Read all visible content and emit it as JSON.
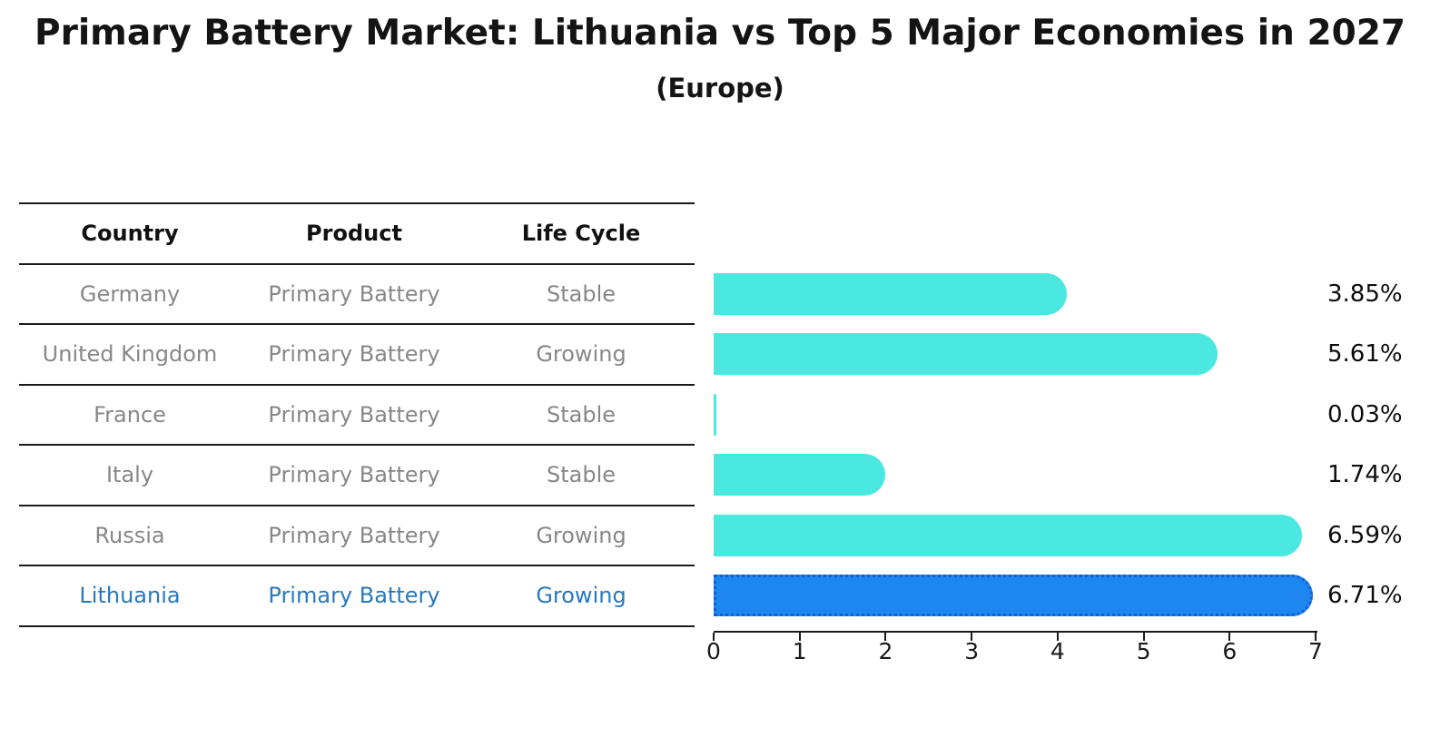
{
  "header": {
    "title": "Primary Battery Market: Lithuania vs Top 5 Major Economies in 2027",
    "subtitle": "(Europe)"
  },
  "table": {
    "columns": [
      "Country",
      "Product",
      "Life Cycle"
    ],
    "rows": [
      {
        "country": "Germany",
        "product": "Primary Battery",
        "life_cycle": "Stable",
        "highlighted": false
      },
      {
        "country": "United Kingdom",
        "product": "Primary Battery",
        "life_cycle": "Growing",
        "highlighted": false
      },
      {
        "country": "France",
        "product": "Primary Battery",
        "life_cycle": "Stable",
        "highlighted": false
      },
      {
        "country": "Italy",
        "product": "Primary Battery",
        "life_cycle": "Stable",
        "highlighted": false
      },
      {
        "country": "Russia",
        "product": "Primary Battery",
        "life_cycle": "Growing",
        "highlighted": false
      },
      {
        "country": "Lithuania",
        "product": "Primary Battery",
        "life_cycle": "Growing",
        "highlighted": true
      }
    ]
  },
  "chart_data": {
    "type": "bar",
    "orientation": "horizontal",
    "title": "Primary Battery Market: Lithuania vs Top 5 Major Economies in 2027",
    "subtitle": "(Europe)",
    "categories": [
      "Germany",
      "United Kingdom",
      "France",
      "Italy",
      "Russia",
      "Lithuania"
    ],
    "values": [
      3.85,
      5.61,
      0.03,
      1.74,
      6.59,
      6.71
    ],
    "value_labels": [
      "3.85%",
      "5.61%",
      "0.03%",
      "1.74%",
      "6.59%",
      "6.71%"
    ],
    "xlim": [
      0,
      7
    ],
    "x_ticks": [
      "0",
      "1",
      "2",
      "3",
      "4",
      "5",
      "6",
      "7"
    ],
    "grid": false,
    "legend": false,
    "highlight_index": 5
  },
  "colors": {
    "bar": "#4AE8E0",
    "highlight_bar": "#1E86F0",
    "highlight_bar_border": "#0E5FD8",
    "table_text": "#878787",
    "highlight_text": "#2878BE",
    "header_text": "#111111",
    "axis": "#1A1A1A"
  }
}
